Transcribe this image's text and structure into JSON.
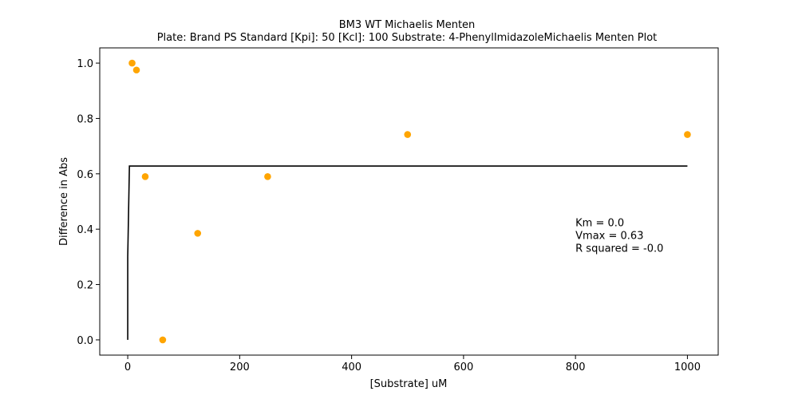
{
  "chart_data": {
    "type": "scatter",
    "title": "BM3 WT Michaelis Menten",
    "subtitle": "Plate: Brand PS Standard  [Kpi]: 50  [Kcl]: 100  Substrate: 4-PhenylImidazoleMichaelis Menten Plot",
    "xlabel": "[Substrate] uM",
    "ylabel": "Difference in Abs",
    "xlim": [
      -50,
      1055
    ],
    "ylim": [
      -0.055,
      1.055
    ],
    "x_ticks": [
      0,
      200,
      400,
      600,
      800,
      1000
    ],
    "x_tick_labels": [
      "0",
      "200",
      "400",
      "600",
      "800",
      "1000"
    ],
    "y_ticks": [
      0.0,
      0.2,
      0.4,
      0.6,
      0.8,
      1.0
    ],
    "y_tick_labels": [
      "0.0",
      "0.2",
      "0.4",
      "0.6",
      "0.8",
      "1.0"
    ],
    "grid": false,
    "series": [
      {
        "type": "scatter",
        "color": "#FFA500",
        "x": [
          7.8,
          15.6,
          31.25,
          62.5,
          125,
          250,
          500,
          1000
        ],
        "y": [
          1.0,
          0.975,
          0.59,
          0.0,
          0.385,
          0.59,
          0.742,
          0.742
        ]
      },
      {
        "type": "line",
        "color": "#000000",
        "x": [
          0,
          0.0001,
          3,
          1000
        ],
        "y": [
          0.0,
          0.3,
          0.628,
          0.628
        ]
      }
    ],
    "annotations": [
      "Km = 0.0",
      "Vmax = 0.63",
      "R squared = -0.0"
    ],
    "annotation_position": [
      800,
      0.41
    ]
  }
}
